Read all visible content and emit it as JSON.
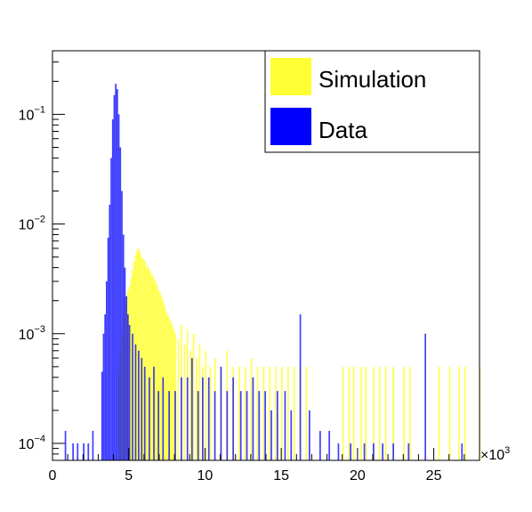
{
  "chart_data": {
    "type": "bar",
    "title": "",
    "xlabel": "",
    "ylabel": "",
    "x_multiplier_label": "×10",
    "x_multiplier_exp": "3",
    "xlim": [
      0,
      28
    ],
    "ylim": [
      7e-05,
      0.38
    ],
    "y_scale": "log",
    "grid": false,
    "legend_placement": "top-right",
    "x_ticks": [
      {
        "value": 0,
        "label": "0"
      },
      {
        "value": 5,
        "label": "5"
      },
      {
        "value": 10,
        "label": "10"
      },
      {
        "value": 15,
        "label": "15"
      },
      {
        "value": 20,
        "label": "20"
      },
      {
        "value": 25,
        "label": "25"
      }
    ],
    "y_ticks": [
      {
        "value": 0.0001,
        "base": "10",
        "exp": "−4"
      },
      {
        "value": 0.001,
        "base": "10",
        "exp": "−3"
      },
      {
        "value": 0.01,
        "base": "10",
        "exp": "−2"
      },
      {
        "value": 0.1,
        "base": "10",
        "exp": "−1"
      }
    ],
    "series": [
      {
        "name": "Simulation",
        "color": "#ffff33",
        "bins": [
          [
            4.3,
            0.00045
          ],
          [
            4.4,
            0.0007
          ],
          [
            4.5,
            0.001
          ],
          [
            4.6,
            0.0014
          ],
          [
            4.7,
            0.0017
          ],
          [
            4.8,
            0.0021
          ],
          [
            4.9,
            0.0025
          ],
          [
            5.0,
            0.0027
          ],
          [
            5.1,
            0.0032
          ],
          [
            5.2,
            0.0038
          ],
          [
            5.3,
            0.0045
          ],
          [
            5.4,
            0.0052
          ],
          [
            5.5,
            0.0058
          ],
          [
            5.6,
            0.006
          ],
          [
            5.7,
            0.0055
          ],
          [
            5.8,
            0.005
          ],
          [
            5.9,
            0.0048
          ],
          [
            6.0,
            0.0046
          ],
          [
            6.1,
            0.004
          ],
          [
            6.2,
            0.0042
          ],
          [
            6.3,
            0.0038
          ],
          [
            6.4,
            0.0036
          ],
          [
            6.5,
            0.0034
          ],
          [
            6.6,
            0.0032
          ],
          [
            6.7,
            0.003
          ],
          [
            6.8,
            0.0028
          ],
          [
            6.9,
            0.0025
          ],
          [
            7.0,
            0.0024
          ],
          [
            7.1,
            0.0022
          ],
          [
            7.2,
            0.002
          ],
          [
            7.3,
            0.0018
          ],
          [
            7.4,
            0.0016
          ],
          [
            7.5,
            0.0015
          ],
          [
            7.6,
            0.0014
          ],
          [
            7.7,
            0.0013
          ],
          [
            7.8,
            0.0012
          ],
          [
            7.9,
            0.0011
          ],
          [
            8.0,
            0.001
          ],
          [
            8.2,
            0.0009
          ],
          [
            8.4,
            0.0012
          ],
          [
            8.6,
            0.0008
          ],
          [
            8.8,
            0.0011
          ],
          [
            9.0,
            0.0007
          ],
          [
            9.2,
            0.001
          ],
          [
            9.4,
            0.0006
          ],
          [
            9.6,
            0.0008
          ],
          [
            9.8,
            0.0005
          ],
          [
            10.0,
            0.0007
          ],
          [
            10.3,
            0.0005
          ],
          [
            10.6,
            0.0006
          ],
          [
            11.0,
            0.0005
          ],
          [
            11.4,
            0.0007
          ],
          [
            11.8,
            0.0005
          ],
          [
            12.2,
            0.0005
          ],
          [
            12.6,
            0.0005
          ],
          [
            13.0,
            0.0006
          ],
          [
            13.4,
            0.0005
          ],
          [
            13.8,
            0.0005
          ],
          [
            14.2,
            0.0005
          ],
          [
            14.6,
            0.0005
          ],
          [
            15.0,
            0.0005
          ],
          [
            15.4,
            0.0005
          ],
          [
            15.8,
            0.0005
          ],
          [
            16.2,
            0.0005
          ],
          [
            16.6,
            0.0005
          ],
          [
            19.0,
            0.0005
          ],
          [
            19.4,
            0.0005
          ],
          [
            19.7,
            0.0005
          ],
          [
            20.2,
            0.0005
          ],
          [
            20.5,
            0.0005
          ],
          [
            21.0,
            0.0005
          ],
          [
            21.4,
            0.0005
          ],
          [
            21.8,
            0.0005
          ],
          [
            22.3,
            0.0005
          ],
          [
            23.0,
            0.0005
          ],
          [
            23.4,
            0.0005
          ],
          [
            25.3,
            0.0005
          ],
          [
            26.0,
            0.0005
          ],
          [
            26.6,
            0.0005
          ],
          [
            27.0,
            0.0005
          ],
          [
            28.0,
            0.0005
          ]
        ]
      },
      {
        "name": "Data",
        "color": "#0000ff",
        "bins": [
          [
            0.8,
            0.00013
          ],
          [
            1.3,
            0.0001
          ],
          [
            1.6,
            0.0001
          ],
          [
            2.0,
            0.0001
          ],
          [
            2.3,
            0.0001
          ],
          [
            2.6,
            0.00013
          ],
          [
            3.2,
            0.00045
          ],
          [
            3.3,
            0.001
          ],
          [
            3.4,
            0.0015
          ],
          [
            3.5,
            0.003
          ],
          [
            3.6,
            0.0075
          ],
          [
            3.7,
            0.015
          ],
          [
            3.8,
            0.04
          ],
          [
            3.9,
            0.09
          ],
          [
            4.0,
            0.15
          ],
          [
            4.1,
            0.19
          ],
          [
            4.2,
            0.17
          ],
          [
            4.3,
            0.1
          ],
          [
            4.4,
            0.05
          ],
          [
            4.5,
            0.02
          ],
          [
            4.6,
            0.008
          ],
          [
            4.7,
            0.004
          ],
          [
            4.8,
            0.0022
          ],
          [
            4.9,
            0.0015
          ],
          [
            5.0,
            0.0012
          ],
          [
            5.2,
            0.001
          ],
          [
            5.4,
            0.0008
          ],
          [
            5.6,
            0.0007
          ],
          [
            5.8,
            0.0006
          ],
          [
            6.0,
            0.0005
          ],
          [
            6.3,
            0.0004
          ],
          [
            6.6,
            0.0005
          ],
          [
            6.9,
            0.0003
          ],
          [
            7.2,
            0.0004
          ],
          [
            7.6,
            0.0003
          ],
          [
            8.0,
            0.0003
          ],
          [
            8.4,
            0.0004
          ],
          [
            8.8,
            0.0004
          ],
          [
            9.1,
            0.0006
          ],
          [
            9.5,
            0.0003
          ],
          [
            9.8,
            0.0004
          ],
          [
            10.2,
            0.0004
          ],
          [
            10.6,
            0.0003
          ],
          [
            11.0,
            0.0005
          ],
          [
            11.4,
            0.0003
          ],
          [
            11.8,
            0.0004
          ],
          [
            12.3,
            0.0003
          ],
          [
            12.7,
            0.0003
          ],
          [
            13.1,
            0.0004
          ],
          [
            13.5,
            0.0003
          ],
          [
            13.9,
            0.0003
          ],
          [
            14.3,
            0.0002
          ],
          [
            14.7,
            0.0003
          ],
          [
            15.2,
            0.0003
          ],
          [
            15.6,
            0.0002
          ],
          [
            16.2,
            0.0015
          ],
          [
            16.8,
            0.0002
          ],
          [
            17.5,
            0.00013
          ],
          [
            18.1,
            0.00013
          ],
          [
            18.7,
            0.0001
          ],
          [
            19.5,
            0.0001
          ],
          [
            20.4,
            0.0001
          ],
          [
            21.0,
            0.0001
          ],
          [
            21.6,
            0.0001
          ],
          [
            22.3,
            0.0001
          ],
          [
            23.3,
            0.0001
          ],
          [
            24.4,
            0.001
          ],
          [
            26.8,
            0.0001
          ]
        ]
      }
    ]
  }
}
